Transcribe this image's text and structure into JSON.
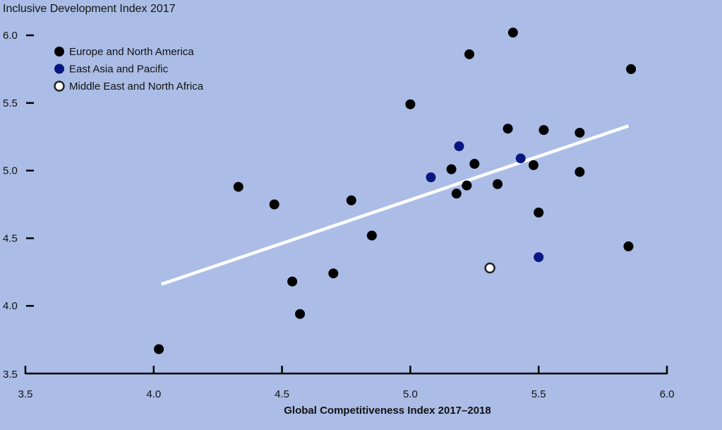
{
  "chart_data": {
    "type": "scatter",
    "title": "Inclusive Development Index 2017",
    "xlabel": "Global Competitiveness Index 2017–2018",
    "ylabel": "",
    "xlim": [
      3.5,
      6.0
    ],
    "ylim": [
      3.5,
      6.0
    ],
    "xticks": [
      "3.5",
      "4.0",
      "4.5",
      "5.0",
      "5.5",
      "6.0"
    ],
    "yticks": [
      "3.5",
      "4.0",
      "4.5",
      "5.0",
      "5.5",
      "6.0"
    ],
    "grid": false,
    "legend_position": "top-left",
    "series": [
      {
        "name": "Europe and North America",
        "color": "#000000",
        "points": [
          [
            4.02,
            3.68
          ],
          [
            4.33,
            4.88
          ],
          [
            4.47,
            4.75
          ],
          [
            4.54,
            4.18
          ],
          [
            4.57,
            3.94
          ],
          [
            4.7,
            4.24
          ],
          [
            4.77,
            4.78
          ],
          [
            4.85,
            4.52
          ],
          [
            5.0,
            5.49
          ],
          [
            5.16,
            5.01
          ],
          [
            5.18,
            4.83
          ],
          [
            5.22,
            4.89
          ],
          [
            5.23,
            5.86
          ],
          [
            5.25,
            5.05
          ],
          [
            5.34,
            4.9
          ],
          [
            5.38,
            5.31
          ],
          [
            5.4,
            6.02
          ],
          [
            5.48,
            5.04
          ],
          [
            5.5,
            4.69
          ],
          [
            5.52,
            5.3
          ],
          [
            5.66,
            4.99
          ],
          [
            5.66,
            5.28
          ],
          [
            5.85,
            4.44
          ],
          [
            5.86,
            5.75
          ]
        ]
      },
      {
        "name": "East Asia and Pacific",
        "color": "#0b1780",
        "points": [
          [
            5.08,
            4.95
          ],
          [
            5.19,
            5.18
          ],
          [
            5.43,
            5.09
          ],
          [
            5.5,
            4.36
          ]
        ]
      },
      {
        "name": "Middle East and North Africa",
        "color": "#ffffff",
        "points": [
          [
            5.31,
            4.28
          ]
        ]
      }
    ],
    "trendline": {
      "color": "#ffffff",
      "from": [
        4.03,
        4.16
      ],
      "to": [
        5.85,
        5.33
      ]
    }
  }
}
